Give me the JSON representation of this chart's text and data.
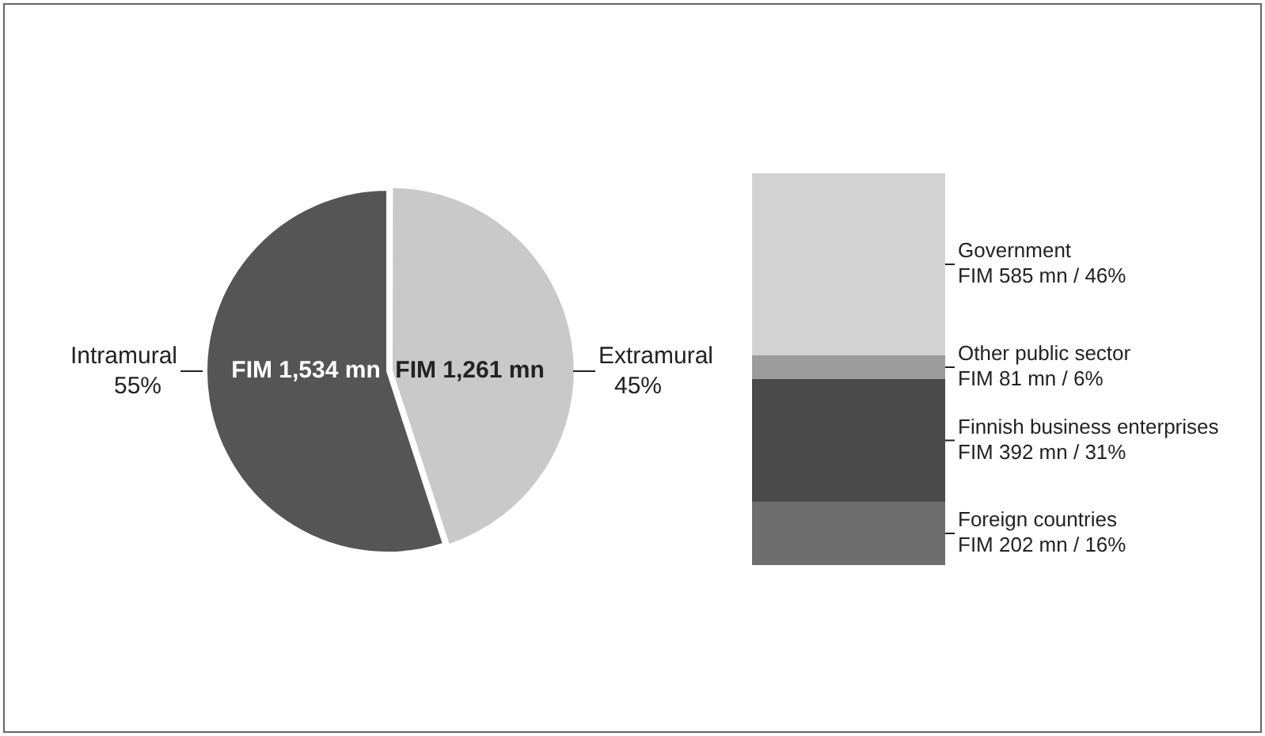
{
  "chart_data": [
    {
      "type": "pie",
      "categories": [
        "Intramural",
        "Extramural"
      ],
      "values": [
        55,
        45
      ],
      "colors": [
        "#555555",
        "#c9c9c9"
      ],
      "value_labels": [
        "55%",
        "45%"
      ],
      "annotations": [
        {
          "text": "FIM 1,534 mn",
          "x": "Intramural"
        },
        {
          "text": "FIM 1,261 mn",
          "x": "Extramural"
        }
      ]
    },
    {
      "type": "bar",
      "stacked": true,
      "categories": [
        null
      ],
      "series": [
        {
          "name": "Foreign countries",
          "color": "#6e6e6e",
          "values": [
            16
          ],
          "value_labels": [
            "FIM 202 mn / 16%"
          ]
        },
        {
          "name": "Finnish business enterprises",
          "color": "#4a4a4a",
          "values": [
            31
          ],
          "value_labels": [
            "FIM 392 mn / 31%"
          ]
        },
        {
          "name": "Other public sector",
          "color": "#9c9c9c",
          "values": [
            6
          ],
          "value_labels": [
            "FIM 81 mn / 6%"
          ]
        },
        {
          "name": "Government",
          "color": "#d2d2d2",
          "values": [
            46
          ],
          "value_labels": [
            "FIM 585 mn / 46%"
          ]
        }
      ]
    }
  ]
}
